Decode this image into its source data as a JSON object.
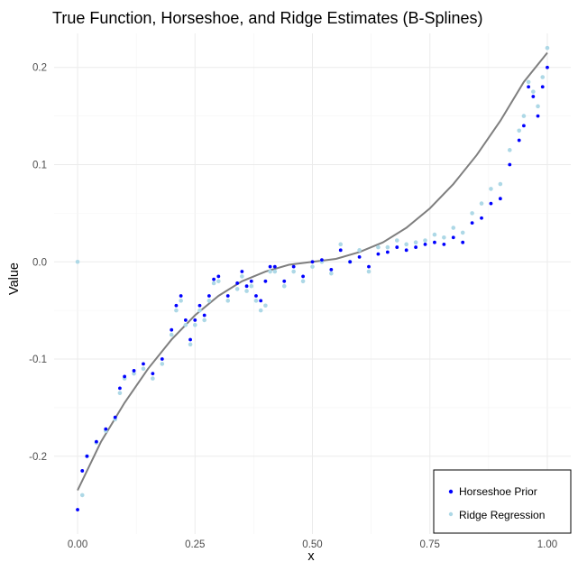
{
  "chart_data": {
    "type": "scatter",
    "title": "True Function, Horseshoe, and Ridge Estimates (B-Splines)",
    "xlabel": "x",
    "ylabel": "Value",
    "xlim": [
      -0.05,
      1.05
    ],
    "ylim": [
      -0.28,
      0.235
    ],
    "x_ticks": [
      0,
      0.25,
      0.5,
      0.75,
      1
    ],
    "x_tick_labels": [
      "0.00",
      "0.25",
      "0.50",
      "0.75",
      "1.00"
    ],
    "y_ticks": [
      -0.2,
      -0.1,
      0.0,
      0.1,
      0.2
    ],
    "y_tick_labels": [
      "-0.2",
      "-0.1",
      "0.0",
      "0.1",
      "0.2"
    ],
    "grid": true,
    "legend_position": "bottom-right",
    "colors": {
      "true_function": "#7f7f7f",
      "horseshoe": "#0000ff",
      "ridge": "#add8e6"
    },
    "series": [
      {
        "name": "Horseshoe Prior",
        "color": "#0000ff",
        "x": [
          0.0,
          0.01,
          0.02,
          0.04,
          0.06,
          0.08,
          0.09,
          0.1,
          0.12,
          0.14,
          0.16,
          0.18,
          0.2,
          0.21,
          0.22,
          0.23,
          0.24,
          0.25,
          0.26,
          0.27,
          0.28,
          0.29,
          0.3,
          0.32,
          0.34,
          0.35,
          0.36,
          0.37,
          0.38,
          0.39,
          0.4,
          0.41,
          0.42,
          0.44,
          0.46,
          0.48,
          0.5,
          0.52,
          0.54,
          0.56,
          0.58,
          0.6,
          0.62,
          0.64,
          0.66,
          0.68,
          0.7,
          0.72,
          0.74,
          0.76,
          0.78,
          0.8,
          0.82,
          0.84,
          0.86,
          0.88,
          0.9,
          0.92,
          0.94,
          0.95,
          0.96,
          0.97,
          0.98,
          0.99,
          1.0
        ],
        "y": [
          -0.255,
          -0.215,
          -0.2,
          -0.185,
          -0.172,
          -0.16,
          -0.13,
          -0.118,
          -0.112,
          -0.105,
          -0.115,
          -0.1,
          -0.07,
          -0.045,
          -0.035,
          -0.06,
          -0.08,
          -0.06,
          -0.045,
          -0.055,
          -0.035,
          -0.018,
          -0.015,
          -0.035,
          -0.022,
          -0.01,
          -0.025,
          -0.02,
          -0.035,
          -0.04,
          -0.02,
          -0.005,
          -0.005,
          -0.02,
          -0.005,
          -0.015,
          0.0,
          0.002,
          -0.008,
          0.012,
          0.0,
          0.005,
          -0.005,
          0.008,
          0.01,
          0.015,
          0.012,
          0.015,
          0.018,
          0.02,
          0.018,
          0.025,
          0.02,
          0.04,
          0.045,
          0.06,
          0.065,
          0.1,
          0.125,
          0.14,
          0.18,
          0.17,
          0.15,
          0.18,
          0.2
        ]
      },
      {
        "name": "Ridge Regression",
        "color": "#add8e6",
        "x": [
          0.0,
          0.01,
          0.02,
          0.04,
          0.06,
          0.08,
          0.09,
          0.1,
          0.12,
          0.14,
          0.16,
          0.18,
          0.2,
          0.21,
          0.22,
          0.23,
          0.24,
          0.25,
          0.26,
          0.27,
          0.28,
          0.29,
          0.3,
          0.32,
          0.34,
          0.35,
          0.36,
          0.37,
          0.38,
          0.39,
          0.4,
          0.41,
          0.42,
          0.44,
          0.46,
          0.48,
          0.5,
          0.52,
          0.54,
          0.56,
          0.58,
          0.6,
          0.62,
          0.64,
          0.66,
          0.68,
          0.7,
          0.72,
          0.74,
          0.76,
          0.78,
          0.8,
          0.82,
          0.84,
          0.86,
          0.88,
          0.9,
          0.92,
          0.94,
          0.95,
          0.96,
          0.97,
          0.98,
          0.99,
          1.0
        ],
        "y": [
          0.0,
          -0.24,
          -0.2,
          -0.186,
          -0.174,
          -0.162,
          -0.135,
          -0.12,
          -0.115,
          -0.11,
          -0.12,
          -0.105,
          -0.075,
          -0.05,
          -0.04,
          -0.065,
          -0.085,
          -0.065,
          -0.05,
          -0.06,
          -0.04,
          -0.022,
          -0.02,
          -0.04,
          -0.028,
          -0.015,
          -0.03,
          -0.025,
          -0.04,
          -0.05,
          -0.045,
          -0.01,
          -0.01,
          -0.025,
          -0.01,
          -0.02,
          -0.005,
          0.0,
          -0.012,
          0.018,
          0.0,
          0.012,
          -0.01,
          0.015,
          0.015,
          0.022,
          0.018,
          0.02,
          0.022,
          0.028,
          0.025,
          0.035,
          0.03,
          0.05,
          0.06,
          0.075,
          0.08,
          0.115,
          0.135,
          0.15,
          0.185,
          0.175,
          0.16,
          0.19,
          0.22
        ]
      },
      {
        "name": "True Function",
        "color": "#7f7f7f",
        "x": [
          0.0,
          0.05,
          0.1,
          0.15,
          0.2,
          0.25,
          0.3,
          0.35,
          0.4,
          0.45,
          0.5,
          0.55,
          0.6,
          0.65,
          0.7,
          0.75,
          0.8,
          0.85,
          0.9,
          0.95,
          1.0
        ],
        "y": [
          -0.235,
          -0.185,
          -0.145,
          -0.11,
          -0.08,
          -0.055,
          -0.035,
          -0.02,
          -0.01,
          -0.003,
          0.0,
          0.003,
          0.01,
          0.02,
          0.035,
          0.055,
          0.08,
          0.11,
          0.145,
          0.185,
          0.215
        ]
      }
    ]
  },
  "legend": {
    "items": [
      {
        "label": "Horseshoe Prior",
        "color": "#0000ff"
      },
      {
        "label": "Ridge Regression",
        "color": "#add8e6"
      }
    ]
  }
}
